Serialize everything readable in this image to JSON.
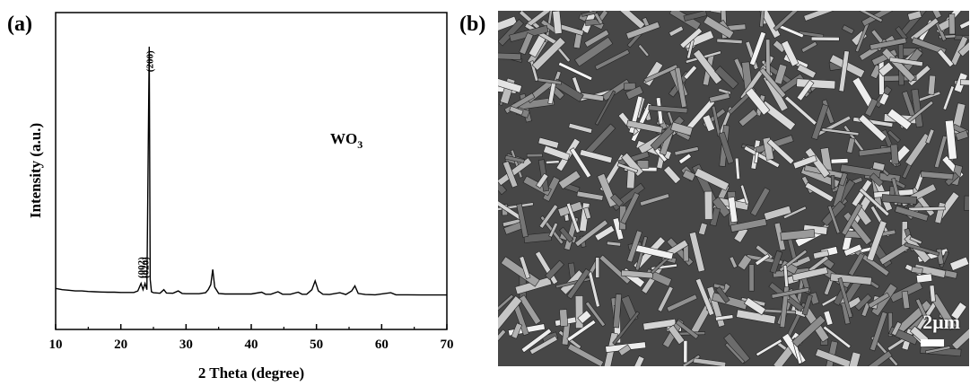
{
  "panel_a_label": "(a)",
  "panel_b_label": "(b)",
  "chart_data": {
    "type": "line",
    "xlabel": "2 Theta (degree)",
    "ylabel": "Intensity (a.u.)",
    "xlim": [
      10,
      70
    ],
    "ylim": [
      0,
      100
    ],
    "xticks": [
      10,
      20,
      30,
      40,
      50,
      60,
      70
    ],
    "compound_label": "WO",
    "compound_subscript": "3",
    "peak_labels": [
      {
        "text": "(002)",
        "x": 23.1,
        "y": 8.5
      },
      {
        "text": "(020)",
        "x": 23.7,
        "y": 8.5
      },
      {
        "text": "(200)",
        "x": 24.4,
        "y": 90
      }
    ],
    "series": [
      {
        "x": [
          10,
          11,
          12,
          13,
          14,
          15,
          16,
          17,
          18,
          19,
          20,
          21,
          22,
          22.6,
          23.1,
          23.4,
          23.7,
          24.0,
          24.2,
          24.35,
          24.5,
          24.7,
          25.0,
          26.0,
          26.6,
          27.0,
          28.0,
          28.8,
          29.4,
          30,
          31,
          32,
          33.0,
          33.4,
          33.8,
          34.1,
          34.4,
          35.0,
          36,
          38,
          40,
          41.6,
          42.2,
          43,
          44.1,
          44.8,
          46,
          47.2,
          47.8,
          48.5,
          49.3,
          49.8,
          50.3,
          51,
          52,
          53.6,
          54.5,
          55.4,
          55.9,
          56.4,
          57.5,
          59,
          61.4,
          62.2,
          64,
          66,
          68,
          70
        ],
        "y": [
          4.5,
          4.0,
          3.8,
          3.5,
          3.5,
          3.3,
          3.2,
          3.1,
          3.0,
          3.0,
          2.9,
          2.9,
          2.9,
          3.5,
          6.5,
          4.0,
          6.5,
          4.0,
          60,
          100,
          8,
          3.2,
          2.8,
          2.6,
          4.0,
          2.7,
          2.6,
          3.5,
          2.5,
          2.4,
          2.4,
          2.4,
          2.8,
          4.0,
          6.0,
          12.0,
          5.0,
          2.5,
          2.3,
          2.3,
          2.3,
          3.0,
          2.2,
          2.2,
          3.2,
          2.2,
          2.2,
          3.0,
          2.2,
          2.2,
          4.0,
          7.5,
          3.5,
          2.2,
          2.1,
          2.8,
          2.1,
          3.5,
          5.5,
          2.5,
          2.1,
          2.0,
          2.8,
          2.0,
          2.0,
          1.9,
          1.9,
          1.9
        ]
      }
    ]
  },
  "sem": {
    "scale_label": "2μm"
  }
}
